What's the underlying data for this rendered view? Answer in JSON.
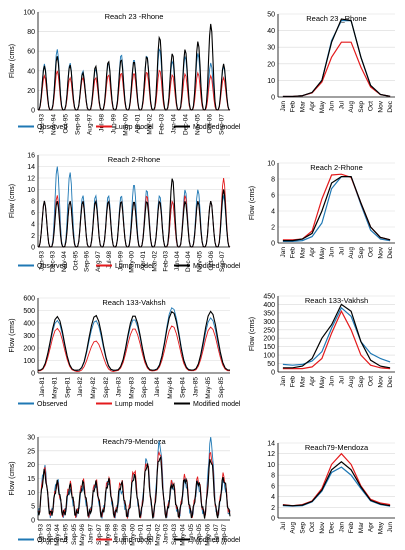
{
  "colors": {
    "observed": "#1f78b4",
    "lump": "#e31a1c",
    "modified": "#000000",
    "grid": "#d9d9d9"
  },
  "chart_data": [
    {
      "type": "line",
      "panel": "reach23-timeseries",
      "title": "Reach 23 -Rhone",
      "ylabel": "Flow (cms)",
      "xlabel": "",
      "ylim": [
        0,
        100
      ],
      "yticks": [
        0,
        20,
        40,
        60,
        80,
        100
      ],
      "x_tick_labels": [
        "Jan-93",
        "Nov-94",
        "Oct-95",
        "Sep-96",
        "Aug-97",
        "Jul-98",
        "Jun-99",
        "May-00",
        "Apr-01",
        "Mar-02",
        "Feb-03",
        "Jan-04",
        "Dec-04",
        "Nov-05",
        "Oct-06",
        "Sep-07"
      ],
      "legend": {
        "placement": "bottom",
        "entries": [
          "Observed",
          "Lump model",
          "Modified model"
        ]
      },
      "series": [
        {
          "name": "Observed",
          "annual_peaks": [
            47,
            62,
            48,
            40,
            42,
            48,
            57,
            52,
            56,
            63,
            50,
            55,
            58,
            48,
            45
          ]
        },
        {
          "name": "Lump model",
          "annual_peaks": [
            35,
            40,
            33,
            33,
            33,
            36,
            38,
            38,
            39,
            41,
            36,
            37,
            38,
            35,
            33
          ]
        },
        {
          "name": "Modified model",
          "annual_peaks": [
            45,
            55,
            46,
            38,
            45,
            50,
            52,
            50,
            55,
            75,
            58,
            62,
            70,
            88,
            47
          ]
        }
      ]
    },
    {
      "type": "line",
      "panel": "reach23-monthly",
      "title": "Reach 23 _Rhone",
      "ylabel": "",
      "xlabel": "",
      "ylim": [
        0,
        50
      ],
      "yticks": [
        0,
        10,
        20,
        30,
        40,
        50
      ],
      "categories": [
        "Jan",
        "Feb",
        "Mar",
        "Apr",
        "May",
        "Jun",
        "Jul",
        "Aug",
        "Sep",
        "Oct",
        "Nov",
        "Dec"
      ],
      "series": [
        {
          "name": "Observed",
          "values": [
            0.3,
            0.3,
            0.8,
            2.5,
            10,
            34,
            46,
            46,
            24,
            7,
            1.5,
            0.4
          ]
        },
        {
          "name": "Lump model",
          "values": [
            0.3,
            0.3,
            0.8,
            2.5,
            9,
            24,
            33,
            33,
            18,
            6,
            1.5,
            0.4
          ]
        },
        {
          "name": "Modified model",
          "values": [
            0.3,
            0.3,
            0.8,
            2.8,
            10,
            33,
            47,
            46,
            24,
            7,
            1.5,
            0.4
          ]
        }
      ]
    },
    {
      "type": "line",
      "panel": "reach2-timeseries",
      "title": "Reach 2-Rhone",
      "ylabel": "Flow (cms)",
      "xlabel": "",
      "ylim": [
        0,
        16
      ],
      "yticks": [
        0,
        2,
        4,
        6,
        8,
        10,
        12,
        14,
        16
      ],
      "x_tick_labels": [
        "Jan-93",
        "Dec-93",
        "Nov-94",
        "Oct-95",
        "Sep-96",
        "Aug-97",
        "Jul-98",
        "Jun-99",
        "May-00",
        "Apr-01",
        "Mar-02",
        "Feb-03",
        "Jan-04",
        "Dec-04",
        "Nov-05",
        "Oct-06",
        "Sep-07"
      ],
      "legend": {
        "placement": "bottom",
        "entries": [
          "Observed",
          "Lump model",
          "Modified model"
        ]
      },
      "series": [
        {
          "name": "Observed",
          "annual_peaks": [
            8,
            14,
            13,
            9,
            9,
            9,
            9,
            11,
            10,
            9,
            8,
            10,
            10,
            8,
            9
          ]
        },
        {
          "name": "Lump model",
          "annual_peaks": [
            8,
            9,
            8,
            8,
            8,
            8,
            8,
            8,
            9,
            8,
            8,
            9,
            8,
            8,
            12
          ]
        },
        {
          "name": "Modified model",
          "annual_peaks": [
            8,
            8,
            8,
            8,
            8,
            8,
            8,
            8,
            8,
            8,
            12,
            8,
            8,
            8,
            10
          ]
        }
      ]
    },
    {
      "type": "line",
      "panel": "reach2-monthly",
      "title": "Reach 2-Rhone",
      "ylabel": "Flow (cms)",
      "xlabel": "",
      "ylim": [
        0,
        10
      ],
      "yticks": [
        0,
        2,
        4,
        6,
        8,
        10
      ],
      "categories": [
        "Jan",
        "Feb",
        "Mar",
        "Apr",
        "May",
        "Jun",
        "Jul",
        "Aug",
        "Sep",
        "Oct",
        "Nov",
        "Dec"
      ],
      "series": [
        {
          "name": "Observed",
          "values": [
            0.2,
            0.2,
            0.3,
            0.8,
            2.5,
            6.8,
            8.3,
            8.3,
            4.8,
            1.6,
            0.5,
            0.3
          ]
        },
        {
          "name": "Lump model",
          "values": [
            0.4,
            0.4,
            0.5,
            1.5,
            5.5,
            8.5,
            8.6,
            8.2,
            5,
            2,
            0.7,
            0.4
          ]
        },
        {
          "name": "Modified model",
          "values": [
            0.3,
            0.3,
            0.5,
            1.2,
            4,
            7.5,
            8.3,
            8.3,
            5,
            2,
            0.7,
            0.4
          ]
        }
      ]
    },
    {
      "type": "line",
      "panel": "reach133-timeseries",
      "title": "Reach 133-Vakhsh",
      "ylabel": "Flow (cms)",
      "xlabel": "",
      "ylim": [
        0,
        600
      ],
      "yticks": [
        0,
        100,
        200,
        300,
        400,
        500,
        600
      ],
      "x_tick_labels": [
        "Jan-81",
        "May-81",
        "Sep-81",
        "Jan-82",
        "May-82",
        "Sep-82",
        "Jan-83",
        "May-83",
        "Sep-83",
        "Jan-84",
        "May-84",
        "Sep-84",
        "Jan-85",
        "May-85",
        "Sep-85"
      ],
      "legend": {
        "placement": "bottom",
        "entries": [
          "Observed",
          "Lump model",
          "Modified model"
        ]
      },
      "series": [
        {
          "name": "Observed",
          "annual_peaks": [
            400,
            400,
            410,
            500,
            420
          ]
        },
        {
          "name": "Lump model",
          "annual_peaks": [
            340,
            245,
            340,
            360,
            350
          ]
        },
        {
          "name": "Modified model",
          "annual_peaks": [
            430,
            440,
            440,
            470,
            470
          ]
        }
      ]
    },
    {
      "type": "line",
      "panel": "reach133-monthly",
      "title": "Reach 133-Vakhsh",
      "ylabel": "Flow (cms)",
      "xlabel": "",
      "ylim": [
        0,
        450
      ],
      "yticks": [
        0,
        50,
        100,
        150,
        200,
        250,
        300,
        350,
        400,
        450
      ],
      "categories": [
        "Jan",
        "Feb",
        "Mar",
        "Apr",
        "May",
        "Jun",
        "Jul",
        "Aug",
        "Sep",
        "Oct",
        "Nov",
        "Dec"
      ],
      "series": [
        {
          "name": "Observed",
          "values": [
            45,
            40,
            45,
            65,
            120,
            260,
            380,
            330,
            180,
            110,
            80,
            60
          ]
        },
        {
          "name": "Lump model",
          "values": [
            20,
            20,
            20,
            30,
            80,
            230,
            360,
            250,
            100,
            40,
            25,
            20
          ]
        },
        {
          "name": "Modified model",
          "values": [
            25,
            25,
            35,
            80,
            200,
            280,
            400,
            360,
            180,
            70,
            35,
            25
          ]
        }
      ]
    },
    {
      "type": "line",
      "panel": "reach79-timeseries",
      "title": "Reach79-Mendoza",
      "ylabel": "Flow (cms)",
      "xlabel": "",
      "ylim": [
        0,
        30
      ],
      "yticks": [
        0,
        5,
        10,
        15,
        20,
        25,
        30
      ],
      "x_tick_labels": [
        "Jan-93",
        "Sep-93",
        "May-94",
        "Jan-95",
        "Sep-95",
        "May-96",
        "Jan-97",
        "Sep-97",
        "May-98",
        "Jan-99",
        "Sep-99",
        "May-00",
        "Jan-01",
        "Sep-01",
        "May-02",
        "Jan-03",
        "Sep-03",
        "May-04",
        "Jan-05",
        "Sep-05",
        "May-06",
        "Jan-07",
        "Sep-07"
      ],
      "legend": {
        "placement": "bottom",
        "entries": [
          "Observed",
          "Lump model",
          "Modified model"
        ]
      },
      "series": [
        {
          "name": "Observed",
          "annual_peaks": [
            17,
            12,
            9,
            10,
            11,
            12,
            9,
            15,
            20,
            26,
            11,
            12,
            11,
            27,
            12
          ]
        },
        {
          "name": "Lump model",
          "annual_peaks": [
            16,
            11,
            11,
            12,
            12,
            13,
            12,
            16,
            19,
            23,
            12,
            14,
            13,
            22,
            14
          ]
        },
        {
          "name": "Modified model",
          "annual_peaks": [
            15,
            11,
            10,
            11,
            11,
            12,
            11,
            14,
            18,
            21,
            11,
            13,
            12,
            20,
            13
          ]
        }
      ]
    },
    {
      "type": "line",
      "panel": "reach79-monthly",
      "title": "Reach79-Mendoza",
      "ylabel": "",
      "xlabel": "",
      "ylim": [
        0,
        14
      ],
      "yticks": [
        0,
        2,
        4,
        6,
        8,
        10,
        12,
        14
      ],
      "categories": [
        "Jul",
        "Aug",
        "Sep",
        "Oct",
        "Nov",
        "Dec",
        "Jan",
        "Feb",
        "Mar",
        "Apr",
        "May",
        "Jun"
      ],
      "series": [
        {
          "name": "Observed",
          "values": [
            2.3,
            2.2,
            2.3,
            3,
            5,
            8.5,
            9.5,
            8,
            5.5,
            3.2,
            2.5,
            2.2
          ]
        },
        {
          "name": "Lump model",
          "values": [
            2.5,
            2.3,
            2.5,
            3.2,
            5.5,
            10,
            12,
            10,
            6,
            3.5,
            2.8,
            2.5
          ]
        },
        {
          "name": "Modified model",
          "values": [
            2.4,
            2.3,
            2.4,
            3.1,
            5.2,
            9,
            10.5,
            9,
            5.8,
            3.3,
            2.6,
            2.3
          ]
        }
      ]
    }
  ]
}
